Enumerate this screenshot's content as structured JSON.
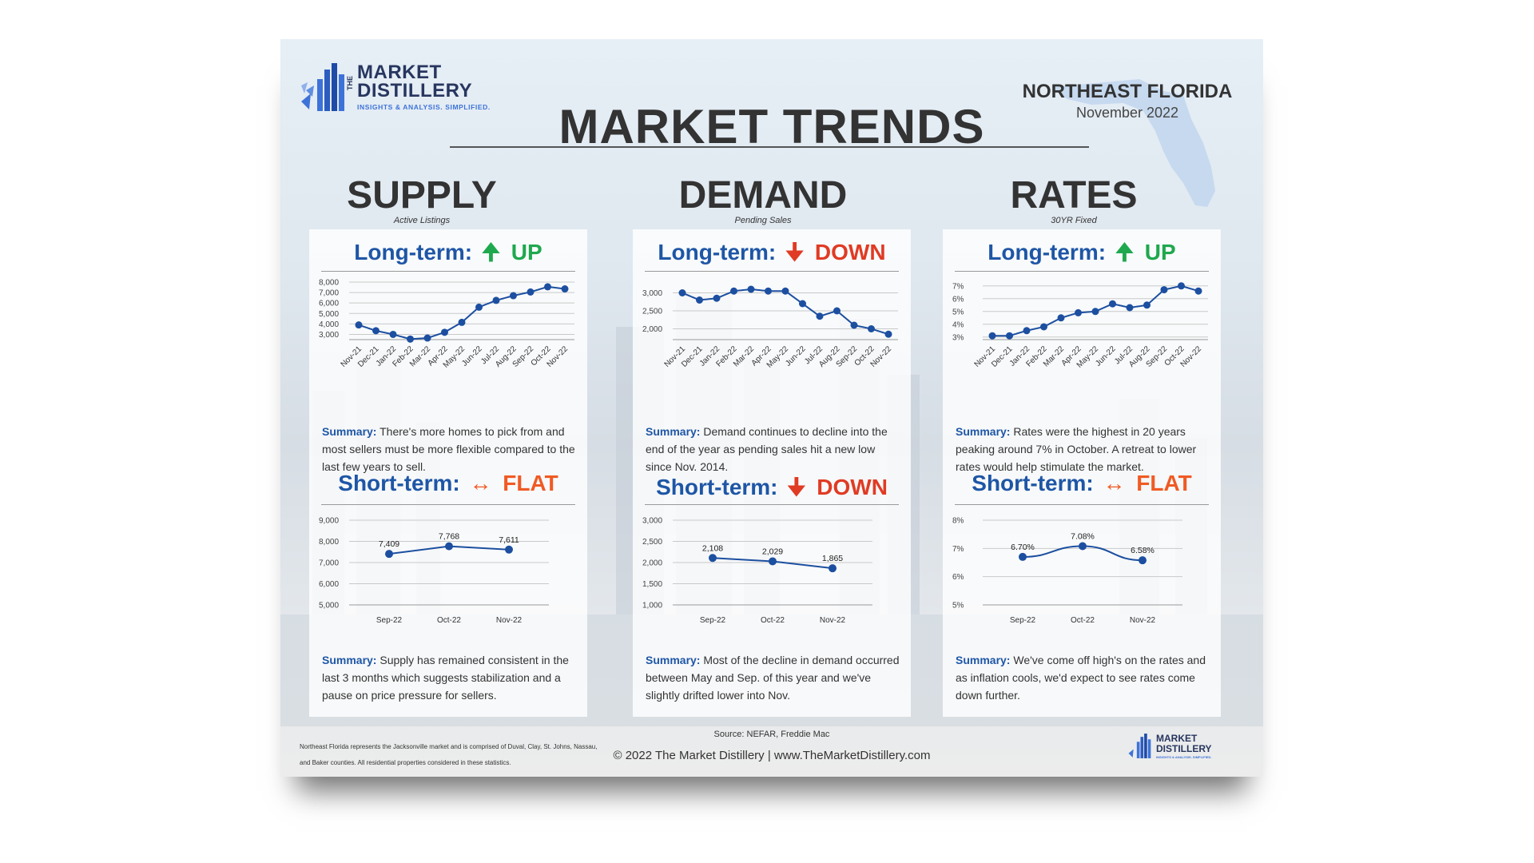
{
  "brand": {
    "name_line1": "MARKET",
    "name_line2": "DISTILLERY",
    "the": "THE",
    "tagline": "INSIGHTS & ANALYSIS. SIMPLIFIED."
  },
  "header": {
    "region": "NORTHEAST FLORIDA",
    "month": "November 2022",
    "title": "MARKET TRENDS"
  },
  "colors": {
    "navy": "#1e56a6",
    "up": "#1fa84e",
    "down": "#e03b24",
    "flat": "#f05a24",
    "series": "#1c4fa0"
  },
  "columns": [
    {
      "title": "SUPPLY",
      "subtitle": "Active Listings",
      "long_term": {
        "label": "Long-term:",
        "arrow": "🠉",
        "direction": "UP",
        "tone": "up",
        "icon": "arrow-up-icon"
      },
      "long_summary": {
        "label": "Summary:",
        "text": " There's more homes to pick from and most sellers must be more flexible compared to the last few years to sell."
      },
      "short_term": {
        "label": "Short-term:",
        "arrow": "↔",
        "direction": "FLAT",
        "tone": "flat",
        "icon": "arrow-left-right-icon"
      },
      "short_summary": {
        "label": "Summary:",
        "text": " Supply has remained consistent in the last 3 months which suggests stabilization and a pause on price pressure for sellers."
      }
    },
    {
      "title": "DEMAND",
      "subtitle": "Pending Sales",
      "long_term": {
        "label": "Long-term:",
        "arrow": "🠋",
        "direction": "DOWN",
        "tone": "down",
        "icon": "arrow-down-icon"
      },
      "long_summary": {
        "label": "Summary:",
        "text": " Demand continues to decline into the end of the year as pending sales hit a new low since Nov. 2014."
      },
      "short_term": {
        "label": "Short-term:",
        "arrow": "🠋",
        "direction": "DOWN",
        "tone": "down",
        "icon": "arrow-down-icon"
      },
      "short_summary": {
        "label": "Summary:",
        "text": " Most of the decline in demand occurred between May and Sep. of this year and we've slightly drifted lower into Nov."
      }
    },
    {
      "title": "RATES",
      "subtitle": "30YR Fixed",
      "long_term": {
        "label": "Long-term:",
        "arrow": "🠉",
        "direction": "UP",
        "tone": "up",
        "icon": "arrow-up-icon"
      },
      "long_summary": {
        "label": "Summary:",
        "text": " Rates were the highest in 20 years peaking around 7% in October. A retreat to lower rates would help stimulate the market."
      },
      "short_term": {
        "label": "Short-term:",
        "arrow": "↔",
        "direction": "FLAT",
        "tone": "flat",
        "icon": "arrow-left-right-icon"
      },
      "short_summary": {
        "label": "Summary:",
        "text": " We've come off high's on the rates and as inflation cools, we'd expect to see rates come down further."
      }
    }
  ],
  "footer": {
    "note": "Northeast Florida represents the Jacksonville market and is comprised of Duval, Clay, St. Johns, Nassau, and Baker counties. All residential properties considered in these statistics.",
    "source": "Source: NEFAR, Freddie Mac",
    "copyright": "© 2022 The Market Distillery | www.TheMarketDistillery.com"
  },
  "chart_data": [
    {
      "id": "supply-long",
      "type": "line",
      "categories": [
        "Nov-21",
        "Dec-21",
        "Jan-22",
        "Feb-22",
        "Mar-22",
        "Apr-22",
        "May-22",
        "Jun-22",
        "Jul-22",
        "Aug-22",
        "Sep-22",
        "Oct-22",
        "Nov-22"
      ],
      "values": [
        3900,
        3350,
        3000,
        2550,
        2650,
        3200,
        4150,
        5600,
        6250,
        6700,
        7050,
        7550,
        7350
      ],
      "ylim": [
        2500,
        8000
      ],
      "yticks": [
        3000,
        4000,
        5000,
        6000,
        7000,
        8000
      ],
      "ytick_labels": [
        "3,000",
        "4,000",
        "5,000",
        "6,000",
        "7,000",
        "8,000"
      ],
      "grid": true,
      "data_labels": false
    },
    {
      "id": "supply-short",
      "type": "line",
      "categories": [
        "Sep-22",
        "Oct-22",
        "Nov-22"
      ],
      "values": [
        7409,
        7768,
        7611
      ],
      "point_labels": [
        "7,409",
        "7,768",
        "7,611"
      ],
      "ylim": [
        5000,
        9000
      ],
      "yticks": [
        5000,
        6000,
        7000,
        8000,
        9000
      ],
      "ytick_labels": [
        "5,000",
        "6,000",
        "7,000",
        "8,000",
        "9,000"
      ],
      "grid": true,
      "data_labels": true
    },
    {
      "id": "demand-long",
      "type": "line",
      "categories": [
        "Nov-21",
        "Dec-21",
        "Jan-22",
        "Feb-22",
        "Mar-22",
        "Apr-22",
        "May-22",
        "Jun-22",
        "Jul-22",
        "Aug-22",
        "Sep-22",
        "Oct-22",
        "Nov-22"
      ],
      "values": [
        3000,
        2800,
        2850,
        3050,
        3100,
        3050,
        3050,
        2700,
        2350,
        2500,
        2100,
        2000,
        1850
      ],
      "ylim": [
        1700,
        3300
      ],
      "yticks": [
        2000,
        2500,
        3000
      ],
      "ytick_labels": [
        "2,000",
        "2,500",
        "3,000"
      ],
      "grid": true,
      "data_labels": false
    },
    {
      "id": "demand-short",
      "type": "line",
      "categories": [
        "Sep-22",
        "Oct-22",
        "Nov-22"
      ],
      "values": [
        2108,
        2029,
        1865
      ],
      "point_labels": [
        "2,108",
        "2,029",
        "1,865"
      ],
      "ylim": [
        1000,
        3000
      ],
      "yticks": [
        1000,
        1500,
        2000,
        2500,
        3000
      ],
      "ytick_labels": [
        "1,000",
        "1,500",
        "2,000",
        "2,500",
        "3,000"
      ],
      "grid": true,
      "data_labels": true
    },
    {
      "id": "rates-long",
      "type": "line",
      "categories": [
        "Nov-21",
        "Dec-21",
        "Jan-22",
        "Feb-22",
        "Mar-22",
        "Apr-22",
        "May-22",
        "Jun-22",
        "Jul-22",
        "Aug-22",
        "Sep-22",
        "Oct-22",
        "Nov-22"
      ],
      "values": [
        3.1,
        3.1,
        3.5,
        3.8,
        4.5,
        4.9,
        5.0,
        5.6,
        5.3,
        5.5,
        6.7,
        7.0,
        6.6
      ],
      "ylim": [
        2.8,
        7.3
      ],
      "yticks": [
        3,
        4,
        5,
        6,
        7
      ],
      "ytick_labels": [
        "3%",
        "4%",
        "5%",
        "6%",
        "7%"
      ],
      "grid": true,
      "data_labels": false
    },
    {
      "id": "rates-short",
      "type": "line",
      "categories": [
        "Sep-22",
        "Oct-22",
        "Nov-22"
      ],
      "values": [
        6.7,
        7.08,
        6.58
      ],
      "point_labels": [
        "6.70%",
        "7.08%",
        "6.58%"
      ],
      "ylim": [
        5,
        8
      ],
      "yticks": [
        5,
        6,
        7,
        8
      ],
      "ytick_labels": [
        "5%",
        "6%",
        "7%",
        "8%"
      ],
      "grid": true,
      "data_labels": true,
      "smooth": true
    }
  ]
}
